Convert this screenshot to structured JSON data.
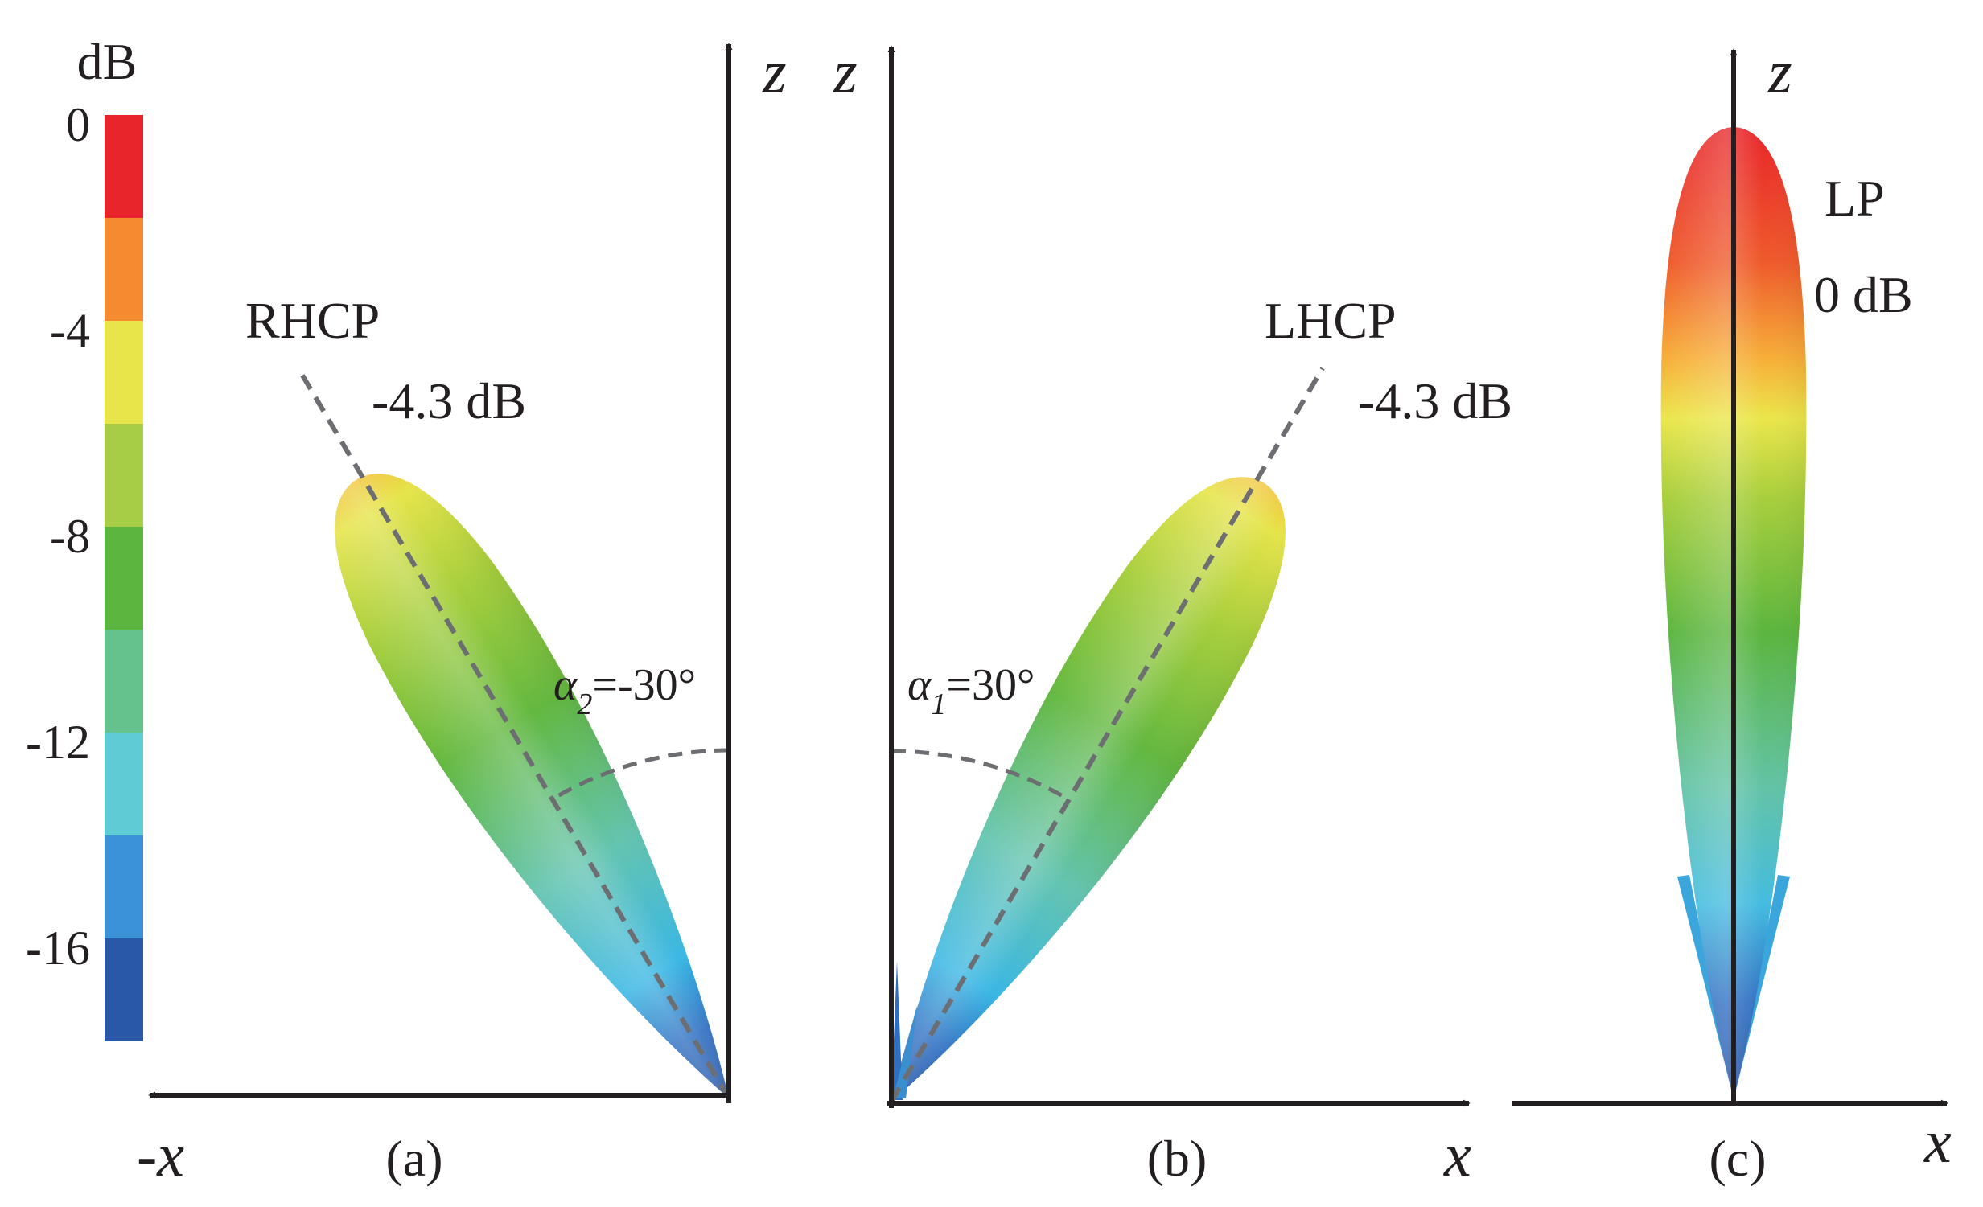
{
  "colorbar": {
    "unit": "dB",
    "ticks": [
      "0",
      "-4",
      "-8",
      "-12",
      "-16"
    ],
    "colors": [
      "#e8252a",
      "#f68a30",
      "#e8e54a",
      "#a7cc45",
      "#5bb53e",
      "#66c28d",
      "#5fcbd4",
      "#3b92d6",
      "#2a58a8"
    ]
  },
  "panels": [
    {
      "caption": "(a)",
      "pol_label": "RHCP",
      "gain_label": "-4.3 dB",
      "angle": {
        "symbol": "α",
        "subscript": "2",
        "value": "=-30°"
      },
      "axes": {
        "horizontal": "-x",
        "vertical": "z"
      },
      "tilt_deg": -30
    },
    {
      "caption": "(b)",
      "pol_label": "LHCP",
      "gain_label": "-4.3 dB",
      "angle": {
        "symbol": "α",
        "subscript": "1",
        "value": "=30°"
      },
      "axes": {
        "horizontal": "x",
        "vertical": "z"
      },
      "tilt_deg": 30
    },
    {
      "caption": "(c)",
      "pol_label": "LP",
      "gain_label": "0 dB",
      "axes": {
        "horizontal": "x",
        "vertical": "z"
      },
      "tilt_deg": 0
    }
  ]
}
